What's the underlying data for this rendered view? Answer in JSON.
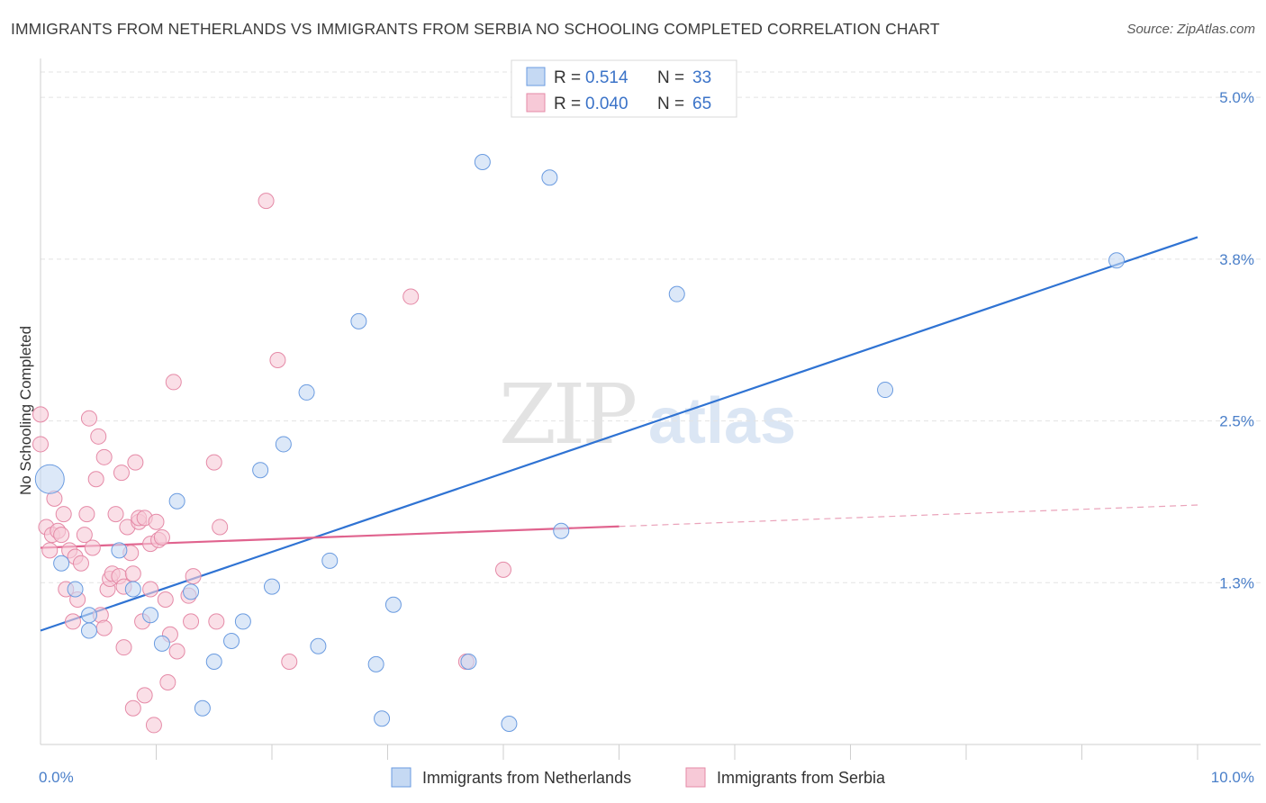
{
  "title": "IMMIGRANTS FROM NETHERLANDS VS IMMIGRANTS FROM SERBIA NO SCHOOLING COMPLETED CORRELATION CHART",
  "source": "Source: ZipAtlas.com",
  "watermark": {
    "zip": "ZIP",
    "atlas": "atlas"
  },
  "chart_data": {
    "type": "scatter",
    "ylabel": "No Schooling Completed",
    "xlim": [
      0,
      10
    ],
    "ylim": [
      0,
      5.3
    ],
    "x_ticks": [
      {
        "value": 0,
        "label": "0.0%"
      },
      {
        "value": 10,
        "label": "10.0%"
      }
    ],
    "y_ticks": [
      {
        "value": 1.25,
        "label": "1.3%"
      },
      {
        "value": 2.5,
        "label": "2.5%"
      },
      {
        "value": 3.75,
        "label": "3.8%"
      },
      {
        "value": 5.0,
        "label": "5.0%"
      }
    ],
    "grid": true,
    "legend_position": "top-center",
    "legend": [
      {
        "r_label": "R =",
        "r_value": "0.514",
        "n_label": "N =",
        "n_value": "33"
      },
      {
        "r_label": "R =",
        "r_value": "0.040",
        "n_label": "N =",
        "n_value": "65"
      }
    ],
    "series": [
      {
        "name": "Immigrants from Netherlands",
        "color": "#6a9be0",
        "fill": "#c5d9f3",
        "trend": {
          "x": [
            0,
            10
          ],
          "y": [
            0.88,
            3.92
          ],
          "dashed_from": null
        },
        "points": [
          {
            "x": 0.08,
            "y": 2.05,
            "big": true
          },
          {
            "x": 0.18,
            "y": 1.4
          },
          {
            "x": 0.3,
            "y": 1.2
          },
          {
            "x": 0.42,
            "y": 1.0
          },
          {
            "x": 0.42,
            "y": 0.88
          },
          {
            "x": 0.68,
            "y": 1.5
          },
          {
            "x": 0.8,
            "y": 1.2
          },
          {
            "x": 0.95,
            "y": 1.0
          },
          {
            "x": 1.05,
            "y": 0.78
          },
          {
            "x": 1.18,
            "y": 1.88
          },
          {
            "x": 1.3,
            "y": 1.18
          },
          {
            "x": 1.4,
            "y": 0.28
          },
          {
            "x": 1.5,
            "y": 0.64
          },
          {
            "x": 1.65,
            "y": 0.8
          },
          {
            "x": 1.75,
            "y": 0.95
          },
          {
            "x": 1.9,
            "y": 2.12
          },
          {
            "x": 2.0,
            "y": 1.22
          },
          {
            "x": 2.1,
            "y": 2.32
          },
          {
            "x": 2.3,
            "y": 2.72
          },
          {
            "x": 2.4,
            "y": 0.76
          },
          {
            "x": 2.5,
            "y": 1.42
          },
          {
            "x": 2.75,
            "y": 3.27
          },
          {
            "x": 2.9,
            "y": 0.62
          },
          {
            "x": 2.95,
            "y": 0.2
          },
          {
            "x": 3.05,
            "y": 1.08
          },
          {
            "x": 3.7,
            "y": 0.64
          },
          {
            "x": 3.82,
            "y": 4.5
          },
          {
            "x": 4.05,
            "y": 0.16
          },
          {
            "x": 4.4,
            "y": 4.38
          },
          {
            "x": 4.5,
            "y": 1.65
          },
          {
            "x": 5.5,
            "y": 3.48
          },
          {
            "x": 7.3,
            "y": 2.74
          },
          {
            "x": 9.3,
            "y": 3.74
          }
        ]
      },
      {
        "name": "Immigrants from Serbia",
        "color": "#e58aa7",
        "fill": "#f7c9d7",
        "trend": {
          "x": [
            0,
            10
          ],
          "y": [
            1.52,
            1.85
          ],
          "dashed_from": 5.0
        },
        "points": [
          {
            "x": 0.0,
            "y": 2.55
          },
          {
            "x": 0.0,
            "y": 2.32
          },
          {
            "x": 0.05,
            "y": 1.68
          },
          {
            "x": 0.08,
            "y": 1.5
          },
          {
            "x": 0.1,
            "y": 1.62
          },
          {
            "x": 0.12,
            "y": 1.9
          },
          {
            "x": 0.15,
            "y": 1.65
          },
          {
            "x": 0.18,
            "y": 1.62
          },
          {
            "x": 0.2,
            "y": 1.78
          },
          {
            "x": 0.22,
            "y": 1.2
          },
          {
            "x": 0.25,
            "y": 1.5
          },
          {
            "x": 0.28,
            "y": 0.95
          },
          {
            "x": 0.3,
            "y": 1.45
          },
          {
            "x": 0.32,
            "y": 1.12
          },
          {
            "x": 0.35,
            "y": 1.4
          },
          {
            "x": 0.38,
            "y": 1.62
          },
          {
            "x": 0.4,
            "y": 1.78
          },
          {
            "x": 0.42,
            "y": 2.52
          },
          {
            "x": 0.45,
            "y": 1.52
          },
          {
            "x": 0.48,
            "y": 2.05
          },
          {
            "x": 0.5,
            "y": 2.38
          },
          {
            "x": 0.52,
            "y": 1.0
          },
          {
            "x": 0.55,
            "y": 0.9
          },
          {
            "x": 0.55,
            "y": 2.22
          },
          {
            "x": 0.58,
            "y": 1.2
          },
          {
            "x": 0.6,
            "y": 1.28
          },
          {
            "x": 0.62,
            "y": 1.32
          },
          {
            "x": 0.65,
            "y": 1.78
          },
          {
            "x": 0.68,
            "y": 1.3
          },
          {
            "x": 0.7,
            "y": 2.1
          },
          {
            "x": 0.72,
            "y": 1.22
          },
          {
            "x": 0.72,
            "y": 0.75
          },
          {
            "x": 0.75,
            "y": 1.68
          },
          {
            "x": 0.78,
            "y": 1.48
          },
          {
            "x": 0.8,
            "y": 1.32
          },
          {
            "x": 0.8,
            "y": 0.28
          },
          {
            "x": 0.82,
            "y": 2.18
          },
          {
            "x": 0.85,
            "y": 1.72
          },
          {
            "x": 0.85,
            "y": 1.75
          },
          {
            "x": 0.88,
            "y": 0.95
          },
          {
            "x": 0.9,
            "y": 1.75
          },
          {
            "x": 0.9,
            "y": 0.38
          },
          {
            "x": 0.95,
            "y": 1.2
          },
          {
            "x": 0.95,
            "y": 1.55
          },
          {
            "x": 0.98,
            "y": 0.15
          },
          {
            "x": 1.0,
            "y": 1.72
          },
          {
            "x": 1.02,
            "y": 1.58
          },
          {
            "x": 1.05,
            "y": 1.6
          },
          {
            "x": 1.08,
            "y": 1.12
          },
          {
            "x": 1.1,
            "y": 0.48
          },
          {
            "x": 1.12,
            "y": 0.85
          },
          {
            "x": 1.15,
            "y": 2.8
          },
          {
            "x": 1.18,
            "y": 0.72
          },
          {
            "x": 1.28,
            "y": 1.15
          },
          {
            "x": 1.3,
            "y": 0.95
          },
          {
            "x": 1.32,
            "y": 1.3
          },
          {
            "x": 1.5,
            "y": 2.18
          },
          {
            "x": 1.52,
            "y": 0.95
          },
          {
            "x": 1.55,
            "y": 1.68
          },
          {
            "x": 1.95,
            "y": 4.2
          },
          {
            "x": 2.05,
            "y": 2.97
          },
          {
            "x": 2.15,
            "y": 0.64
          },
          {
            "x": 3.2,
            "y": 3.46
          },
          {
            "x": 3.68,
            "y": 0.64
          },
          {
            "x": 4.0,
            "y": 1.35
          }
        ]
      }
    ]
  }
}
